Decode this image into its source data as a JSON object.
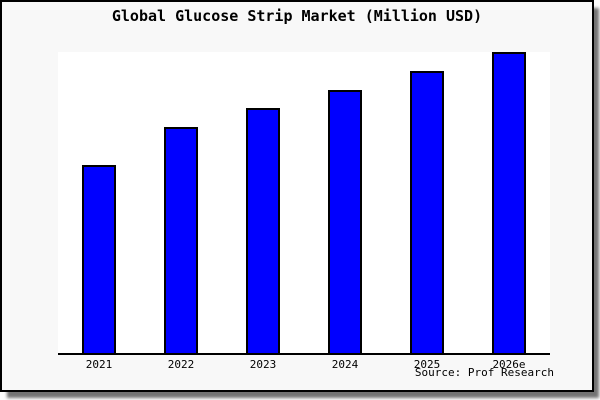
{
  "window": {
    "background": "#f8f8f8",
    "plot_background": "#ffffff",
    "frame_color": "#000000",
    "shadow_color": "#999999"
  },
  "chart_data": {
    "type": "bar",
    "title": "Global Glucose Strip Market (Million USD)",
    "categories": [
      "2021",
      "2022",
      "2023",
      "2024",
      "2025",
      "2026e"
    ],
    "values": [
      62.5,
      75,
      81.3,
      87.5,
      93.8,
      100
    ],
    "xlabel": "",
    "ylabel": "",
    "ylim": [
      0,
      100
    ],
    "y_axis_ticks": "hidden",
    "grid": false,
    "legend": false,
    "bar_color": "#0000ff",
    "bar_border_color": "#000000",
    "source_note": "Source: Prof Research"
  }
}
